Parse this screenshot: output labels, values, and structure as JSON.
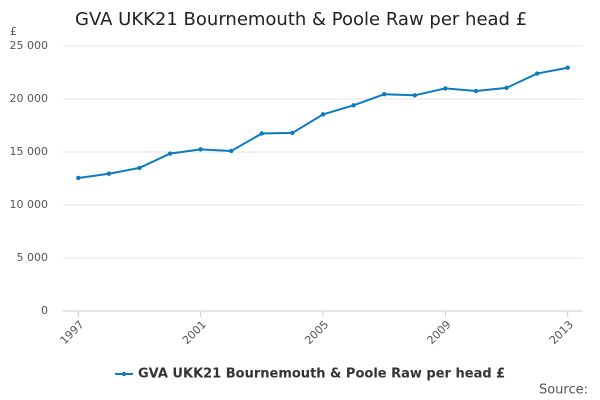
{
  "chart_data": {
    "type": "line",
    "title": "GVA UKK21 Bournemouth & Poole Raw per head £",
    "y_label": "£",
    "source": "Source:",
    "x": [
      1997,
      1998,
      1999,
      2000,
      2001,
      2002,
      2003,
      2004,
      2005,
      2006,
      2007,
      2008,
      2009,
      2010,
      2011,
      2012,
      2013
    ],
    "series": [
      {
        "name": "GVA UKK21 Bournemouth & Poole Raw per head £",
        "color": "#0c7bbf",
        "values": [
          12550,
          12950,
          13500,
          14850,
          15250,
          15100,
          16750,
          16800,
          18550,
          19400,
          20450,
          20350,
          21000,
          20750,
          21050,
          22400,
          22950
        ]
      }
    ],
    "xlim": [
      1996.5,
      2013.5
    ],
    "xticks": [
      1997,
      2001,
      2005,
      2009,
      2013
    ],
    "ylim": [
      0,
      25000
    ],
    "yticks": [
      0,
      {
        "value": 5000,
        "label": "5 000"
      },
      {
        "value": 10000,
        "label": "10 000"
      },
      {
        "value": 15000,
        "label": "15 000"
      },
      {
        "value": 20000,
        "label": "20 000"
      },
      {
        "value": 25000,
        "label": "25 000"
      }
    ],
    "grid": true
  }
}
